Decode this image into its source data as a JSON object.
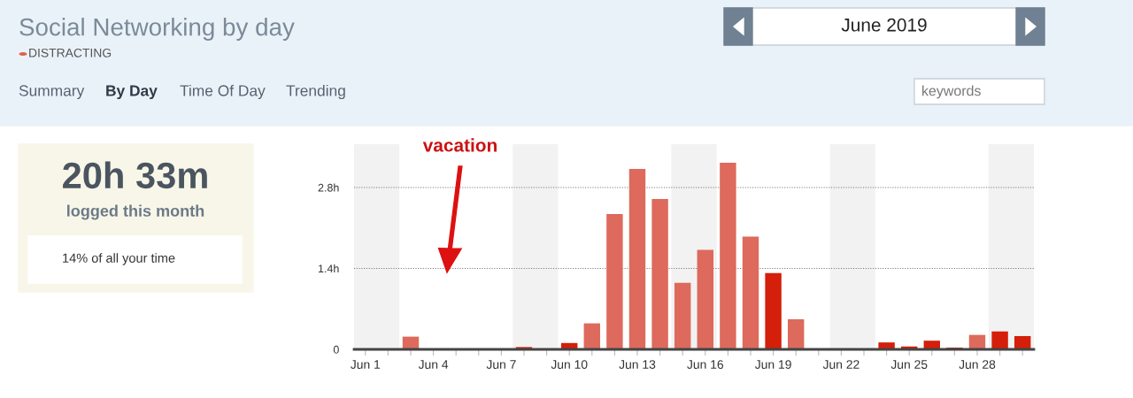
{
  "chart_data": {
    "type": "bar",
    "title": "Social Networking by day",
    "x": [
      "2019-06-01",
      "2019-06-02",
      "2019-06-03",
      "2019-06-04",
      "2019-06-05",
      "2019-06-06",
      "2019-06-07",
      "2019-06-08",
      "2019-06-09",
      "2019-06-10",
      "2019-06-11",
      "2019-06-12",
      "2019-06-13",
      "2019-06-14",
      "2019-06-15",
      "2019-06-16",
      "2019-06-17",
      "2019-06-18",
      "2019-06-19",
      "2019-06-20",
      "2019-06-21",
      "2019-06-22",
      "2019-06-23",
      "2019-06-24",
      "2019-06-25",
      "2019-06-26",
      "2019-06-27",
      "2019-06-28",
      "2019-06-29",
      "2019-06-30"
    ],
    "values": [
      0,
      0,
      0.22,
      0,
      0,
      0,
      0,
      0.04,
      0,
      0.11,
      0.45,
      2.34,
      3.12,
      2.6,
      1.15,
      1.72,
      3.23,
      1.95,
      1.32,
      0.52,
      0,
      0,
      0,
      0.12,
      0.05,
      0.15,
      0.03,
      0.25,
      0.31,
      0.23
    ],
    "colors": [
      "#dd6a5c",
      "#dd6a5c",
      "#dd6a5c",
      "#dd6a5c",
      "#dd6a5c",
      "#dd6a5c",
      "#dd6a5c",
      "#d41f0a",
      "#dd6a5c",
      "#d41f0a",
      "#dd6a5c",
      "#dd6a5c",
      "#dd6a5c",
      "#dd6a5c",
      "#dd6a5c",
      "#dd6a5c",
      "#dd6a5c",
      "#dd6a5c",
      "#d41f0a",
      "#dd6a5c",
      "#dd6a5c",
      "#dd6a5c",
      "#dd6a5c",
      "#d41f0a",
      "#d41f0a",
      "#d41f0a",
      "#d41f0a",
      "#dd6a5c",
      "#d41f0a",
      "#d41f0a"
    ],
    "xlim": [
      "2019-05-31T12:00",
      "2019-06-30T12:00"
    ],
    "xticks": [
      {
        "value": "2019-06-01",
        "label": "Jun 1"
      },
      {
        "value": "2019-06-02",
        "label": null
      },
      {
        "value": "2019-06-03",
        "label": null
      },
      {
        "value": "2019-06-04",
        "label": "Jun 4"
      },
      {
        "value": "2019-06-05",
        "label": null
      },
      {
        "value": "2019-06-06",
        "label": null
      },
      {
        "value": "2019-06-07",
        "label": "Jun 7"
      },
      {
        "value": "2019-06-08",
        "label": null
      },
      {
        "value": "2019-06-09",
        "label": null
      },
      {
        "value": "2019-06-10",
        "label": "Jun 10"
      },
      {
        "value": "2019-06-11",
        "label": null
      },
      {
        "value": "2019-06-12",
        "label": null
      },
      {
        "value": "2019-06-13",
        "label": "Jun 13"
      },
      {
        "value": "2019-06-14",
        "label": null
      },
      {
        "value": "2019-06-15",
        "label": null
      },
      {
        "value": "2019-06-16",
        "label": "Jun 16"
      },
      {
        "value": "2019-06-17",
        "label": null
      },
      {
        "value": "2019-06-18",
        "label": null
      },
      {
        "value": "2019-06-19",
        "label": "Jun 19"
      },
      {
        "value": "2019-06-20",
        "label": null
      },
      {
        "value": "2019-06-21",
        "label": null
      },
      {
        "value": "2019-06-22",
        "label": "Jun 22"
      },
      {
        "value": "2019-06-23",
        "label": null
      },
      {
        "value": "2019-06-24",
        "label": null
      },
      {
        "value": "2019-06-25",
        "label": "Jun 25"
      },
      {
        "value": "2019-06-26",
        "label": null
      },
      {
        "value": "2019-06-27",
        "label": null
      },
      {
        "value": "2019-06-28",
        "label": "Jun 28"
      },
      {
        "value": "2019-06-29",
        "label": null
      },
      {
        "value": "2019-06-30",
        "label": null
      }
    ],
    "ylim": [
      0,
      3.55
    ],
    "yticks": [
      {
        "value": 0,
        "label": "0"
      },
      {
        "value": 1.4,
        "label": "1.4h"
      },
      {
        "value": 2.8,
        "label": "2.8h"
      }
    ],
    "grid": "y",
    "bands": [
      {
        "axis": "x",
        "from": "2019-05-31T12:00",
        "to": "2019-06-02T12:00",
        "color": "#f2f2f2"
      },
      {
        "axis": "x",
        "from": "2019-06-07T12:00",
        "to": "2019-06-09T12:00",
        "color": "#f2f2f2"
      },
      {
        "axis": "x",
        "from": "2019-06-14T12:00",
        "to": "2019-06-16T12:00",
        "color": "#f2f2f2"
      },
      {
        "axis": "x",
        "from": "2019-06-21T12:00",
        "to": "2019-06-23T12:00",
        "color": "#f2f2f2"
      },
      {
        "axis": "x",
        "from": "2019-06-28T12:00",
        "to": "2019-06-30T12:00",
        "color": "#f2f2f2"
      }
    ],
    "annotations": [
      "DISTRACTING",
      "Summary",
      "By Day",
      "Time Of Day",
      "Trending",
      "June 2019",
      "keywords",
      "20h 33m",
      "logged this month",
      "14% of all your time",
      "vacation"
    ]
  }
}
